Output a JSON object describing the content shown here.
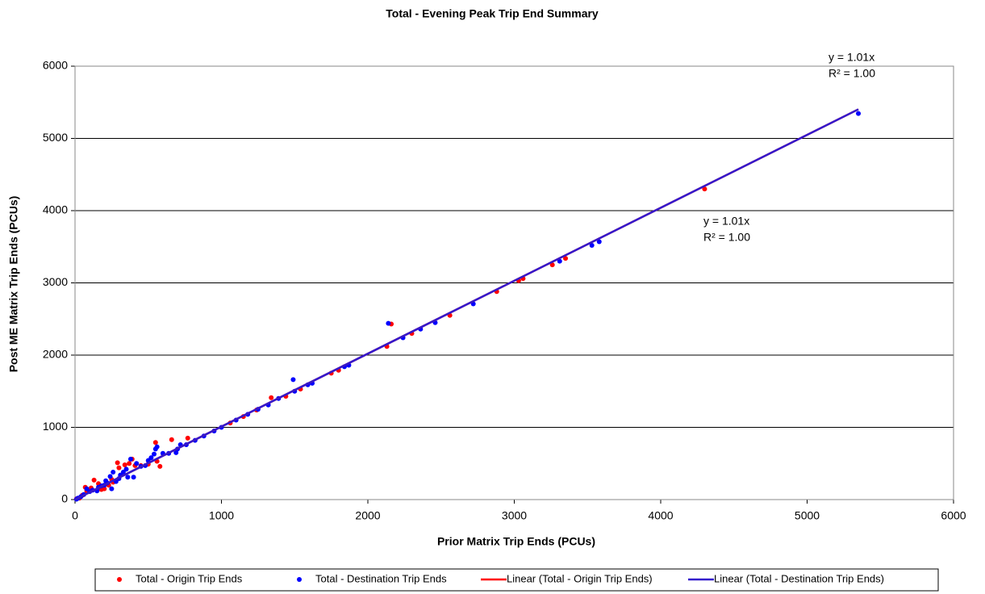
{
  "chart_data": {
    "type": "scatter",
    "title": "Total - Evening Peak Trip End Summary",
    "x_label": "Prior Matrix Trip Ends (PCUs)",
    "y_label": "Post ME Matrix Trip Ends (PCUs)",
    "xlim": [
      0,
      6000
    ],
    "xticks": [
      0,
      1000,
      2000,
      3000,
      4000,
      5000,
      6000
    ],
    "ylim": [
      0,
      6000
    ],
    "yticks": [
      0,
      1000,
      2000,
      3000,
      4000,
      5000,
      6000
    ],
    "grid": true,
    "legend": "bottom",
    "annotations": [
      "y = 1.01x",
      "R² = 1.00",
      "y = 1.01x",
      "R² = 1.00"
    ],
    "series": [
      {
        "name": "Total - Origin Trip Ends",
        "type": "scatter",
        "color": "#ff0000",
        "x": [
          4300,
          3350,
          3260,
          3060,
          3030,
          2880,
          2560,
          2300,
          2160,
          2130,
          1800,
          1750,
          1540,
          1440,
          1340,
          1240,
          1150,
          1060,
          770,
          660,
          580,
          560,
          550,
          500,
          450,
          410,
          390,
          370,
          340,
          300,
          290,
          260,
          250,
          230,
          200,
          180,
          160,
          130,
          110,
          80,
          70,
          50,
          30,
          10
        ],
        "values": [
          4300,
          3340,
          3250,
          3060,
          3030,
          2880,
          2550,
          2300,
          2430,
          2120,
          1790,
          1750,
          1530,
          1430,
          1410,
          1240,
          1150,
          1060,
          850,
          830,
          460,
          530,
          790,
          490,
          470,
          470,
          560,
          500,
          480,
          440,
          510,
          240,
          280,
          200,
          150,
          140,
          220,
          270,
          160,
          120,
          170,
          60,
          20,
          10
        ]
      },
      {
        "name": "Total - Destination Trip Ends",
        "type": "scatter",
        "color": "#0000ff",
        "x": [
          5350,
          3580,
          3530,
          3310,
          2720,
          2460,
          2360,
          2240,
          2140,
          1870,
          1840,
          1620,
          1590,
          1490,
          1500,
          1390,
          1320,
          1250,
          1180,
          1100,
          1000,
          950,
          880,
          820,
          760,
          720,
          700,
          690,
          640,
          600,
          560,
          550,
          540,
          520,
          500,
          480,
          450,
          420,
          400,
          380,
          360,
          350,
          330,
          310,
          300,
          280,
          260,
          250,
          240,
          220,
          210,
          200,
          180,
          160,
          150,
          120,
          100,
          80,
          60,
          40,
          20,
          10
        ],
        "values": [
          5345,
          3570,
          3520,
          3300,
          2710,
          2450,
          2360,
          2240,
          2440,
          1860,
          1840,
          1610,
          1590,
          1660,
          1500,
          1400,
          1310,
          1250,
          1180,
          1100,
          1000,
          950,
          880,
          820,
          760,
          760,
          700,
          650,
          640,
          640,
          730,
          700,
          630,
          580,
          540,
          470,
          460,
          500,
          310,
          560,
          310,
          420,
          380,
          340,
          290,
          250,
          380,
          150,
          320,
          230,
          260,
          200,
          190,
          170,
          120,
          130,
          110,
          150,
          70,
          40,
          20,
          5
        ]
      },
      {
        "name": "Linear (Total - Origin Trip Ends)",
        "type": "line",
        "color": "#ff0000",
        "x": [
          0,
          5350
        ],
        "values": [
          0,
          5403
        ]
      },
      {
        "name": "Linear (Total - Destination Trip Ends)",
        "type": "line",
        "color": "#3319cc",
        "x": [
          0,
          5350
        ],
        "values": [
          0,
          5403
        ]
      }
    ]
  }
}
